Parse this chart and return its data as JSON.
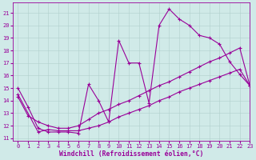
{
  "xlabel": "Windchill (Refroidissement éolien,°C)",
  "xlim": [
    -0.5,
    23
  ],
  "ylim": [
    10.8,
    21.8
  ],
  "xticks": [
    0,
    1,
    2,
    3,
    4,
    5,
    6,
    7,
    8,
    9,
    10,
    11,
    12,
    13,
    14,
    15,
    16,
    17,
    18,
    19,
    20,
    21,
    22,
    23
  ],
  "yticks": [
    11,
    12,
    13,
    14,
    15,
    16,
    17,
    18,
    19,
    20,
    21
  ],
  "background_color": "#d0eae8",
  "grid_color": "#b0d0cc",
  "line_color": "#990099",
  "line1_x": [
    0,
    1,
    2,
    3,
    4,
    5,
    6,
    7,
    8,
    9,
    10,
    11,
    12,
    13,
    14,
    15,
    16,
    17,
    18,
    19,
    20,
    21,
    22,
    23
  ],
  "line1_y": [
    15.0,
    13.5,
    11.8,
    11.5,
    11.5,
    11.5,
    11.4,
    15.3,
    14.0,
    12.3,
    18.8,
    17.0,
    17.0,
    13.8,
    20.0,
    21.3,
    20.5,
    20.0,
    19.2,
    19.0,
    18.5,
    17.1,
    16.1,
    15.2
  ],
  "line2_x": [
    0,
    2,
    3,
    4,
    5,
    6,
    7,
    8,
    9,
    10,
    11,
    12,
    13,
    14,
    15,
    16,
    17,
    18,
    19,
    20,
    21,
    22,
    23
  ],
  "line2_y": [
    14.5,
    11.5,
    11.7,
    11.6,
    11.6,
    11.6,
    11.8,
    12.0,
    12.3,
    12.7,
    13.0,
    13.3,
    13.6,
    14.0,
    14.3,
    14.7,
    15.0,
    15.3,
    15.6,
    15.9,
    16.2,
    16.5,
    15.2
  ],
  "line3_x": [
    0,
    1,
    2,
    3,
    4,
    5,
    6,
    7,
    8,
    9,
    10,
    11,
    12,
    13,
    14,
    15,
    16,
    17,
    18,
    19,
    20,
    21,
    22,
    23
  ],
  "line3_y": [
    14.3,
    12.8,
    12.3,
    12.0,
    11.8,
    11.8,
    12.0,
    12.5,
    13.0,
    13.3,
    13.7,
    14.0,
    14.4,
    14.8,
    15.2,
    15.5,
    15.9,
    16.3,
    16.7,
    17.1,
    17.4,
    17.8,
    18.2,
    15.2
  ],
  "marker": "+",
  "markersize": 3,
  "markeredgewidth": 0.8,
  "linewidth": 0.8,
  "tick_fontsize": 5.0,
  "label_fontsize": 5.8
}
